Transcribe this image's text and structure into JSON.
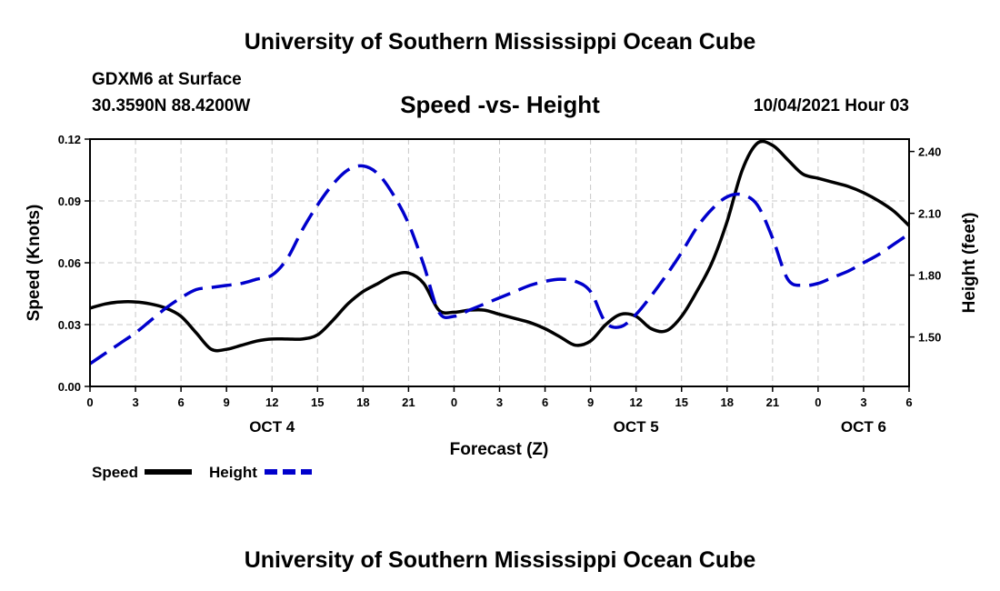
{
  "header": {
    "title_top": "University of Southern Mississippi Ocean Cube",
    "station": "GDXM6 at Surface",
    "coords": "30.3590N  88.4200W",
    "datetime": "10/04/2021 Hour 03",
    "title_bottom": "University of Southern Mississippi Ocean Cube"
  },
  "chart_data": {
    "type": "line",
    "title": "Speed -vs- Height",
    "xlabel": "Forecast (Z)",
    "ylabel_left": "Speed (Knots)",
    "ylabel_right": "Height (feet)",
    "x_hours": [
      0,
      3,
      6,
      9,
      12,
      15,
      18,
      21,
      24,
      27,
      30,
      33,
      36,
      39,
      42,
      45,
      48,
      51,
      54
    ],
    "x_tick_labels": [
      "0",
      "3",
      "6",
      "9",
      "12",
      "15",
      "18",
      "21",
      "0",
      "3",
      "6",
      "9",
      "12",
      "15",
      "18",
      "21",
      "0",
      "3",
      "6"
    ],
    "date_labels": [
      {
        "label": "OCT 4",
        "hour": 12
      },
      {
        "label": "OCT 5",
        "hour": 36
      },
      {
        "label": "OCT 6",
        "hour": 51
      }
    ],
    "ylim_left": [
      0,
      0.12
    ],
    "yticks_left": [
      "0.00",
      "0.03",
      "0.06",
      "0.09",
      "0.12"
    ],
    "ylim_right": [
      1.26,
      2.46
    ],
    "yticks_right": [
      "1.50",
      "1.80",
      "2.10",
      "2.40"
    ],
    "grid": true,
    "series": [
      {
        "name": "Speed",
        "axis": "left",
        "color": "#000000",
        "dash": "solid",
        "x": [
          0,
          1,
          2,
          3,
          4,
          5,
          6,
          7,
          8,
          9,
          10,
          11,
          12,
          13,
          14,
          15,
          16,
          17,
          18,
          19,
          20,
          21,
          22,
          23,
          24,
          25,
          26,
          27,
          28,
          29,
          30,
          31,
          32,
          33,
          34,
          35,
          36,
          37,
          38,
          39,
          40,
          41,
          42,
          43,
          44,
          45,
          46,
          47,
          48,
          49,
          50,
          51,
          52,
          53,
          54
        ],
        "values": [
          0.038,
          0.04,
          0.041,
          0.041,
          0.04,
          0.038,
          0.034,
          0.026,
          0.018,
          0.018,
          0.02,
          0.022,
          0.023,
          0.023,
          0.023,
          0.025,
          0.032,
          0.04,
          0.046,
          0.05,
          0.054,
          0.055,
          0.05,
          0.037,
          0.036,
          0.037,
          0.037,
          0.035,
          0.033,
          0.031,
          0.028,
          0.024,
          0.02,
          0.022,
          0.03,
          0.035,
          0.034,
          0.028,
          0.027,
          0.034,
          0.046,
          0.06,
          0.08,
          0.105,
          0.118,
          0.117,
          0.11,
          0.103,
          0.101,
          0.099,
          0.097,
          0.094,
          0.09,
          0.085,
          0.078
        ]
      },
      {
        "name": "Height",
        "axis": "right",
        "color": "#0000cc",
        "dash": "dashed",
        "x": [
          0,
          1,
          2,
          3,
          4,
          5,
          6,
          7,
          8,
          9,
          10,
          11,
          12,
          13,
          14,
          15,
          16,
          17,
          18,
          19,
          20,
          21,
          22,
          23,
          24,
          25,
          26,
          27,
          28,
          29,
          30,
          31,
          32,
          33,
          34,
          35,
          36,
          37,
          38,
          39,
          40,
          41,
          42,
          43,
          44,
          45,
          46,
          47,
          48,
          49,
          50,
          51,
          52,
          53,
          54
        ],
        "values": [
          1.37,
          1.42,
          1.47,
          1.52,
          1.58,
          1.64,
          1.69,
          1.73,
          1.74,
          1.75,
          1.76,
          1.78,
          1.8,
          1.88,
          2.02,
          2.14,
          2.24,
          2.31,
          2.33,
          2.29,
          2.19,
          2.05,
          1.85,
          1.62,
          1.6,
          1.63,
          1.66,
          1.69,
          1.72,
          1.75,
          1.77,
          1.78,
          1.77,
          1.72,
          1.57,
          1.55,
          1.61,
          1.7,
          1.8,
          1.91,
          2.03,
          2.12,
          2.18,
          2.19,
          2.14,
          1.98,
          1.78,
          1.75,
          1.76,
          1.79,
          1.82,
          1.86,
          1.9,
          1.95,
          2.0
        ]
      }
    ],
    "legend": [
      {
        "label": "Speed",
        "color": "#000000",
        "dash": "solid"
      },
      {
        "label": "Height",
        "color": "#0000cc",
        "dash": "dashed"
      }
    ],
    "legend_position": "bottom-left"
  }
}
